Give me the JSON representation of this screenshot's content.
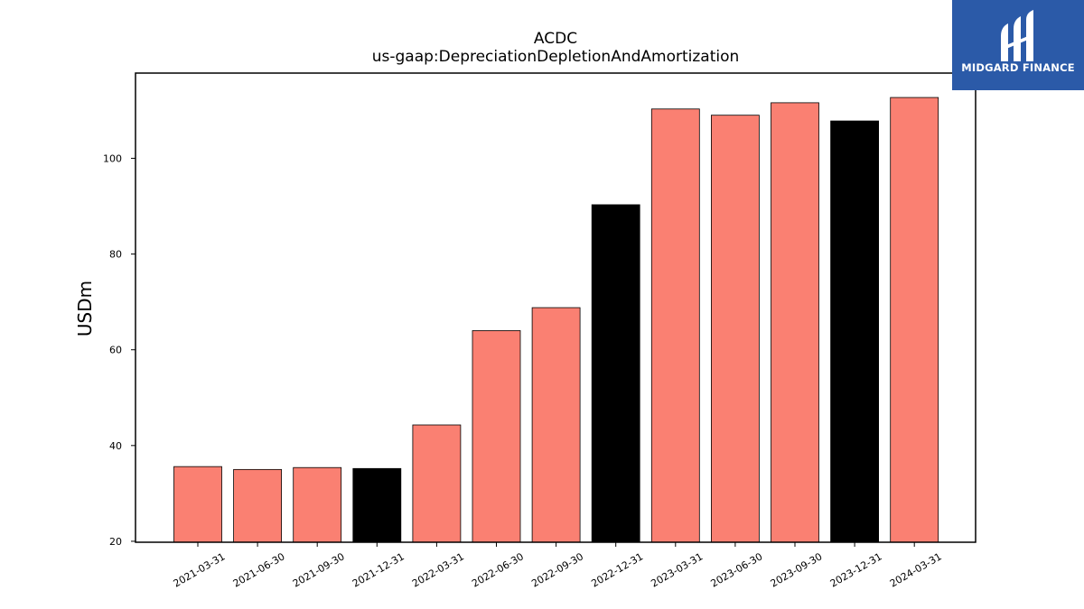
{
  "brand": {
    "name": "MIDGARD FINANCE",
    "icon": "midgard-logo-icon",
    "background": "#2b5aa8"
  },
  "chart_data": {
    "type": "bar",
    "title": "ACDC",
    "subtitle": "us-gaap:DepreciationDepletionAndAmortization",
    "xlabel": "",
    "ylabel": "USDm",
    "ylim": [
      19.8,
      117.8
    ],
    "yticks": [
      20,
      40,
      60,
      80,
      100
    ],
    "grid": false,
    "categories": [
      "2021-03-31",
      "2021-06-30",
      "2021-09-30",
      "2021-12-31",
      "2022-03-31",
      "2022-06-30",
      "2022-09-30",
      "2022-12-31",
      "2023-03-31",
      "2023-06-30",
      "2023-09-30",
      "2023-12-31",
      "2024-03-31"
    ],
    "values": [
      35.6,
      35.0,
      35.4,
      35.2,
      44.3,
      64.0,
      68.8,
      90.3,
      110.3,
      109.0,
      111.6,
      107.8,
      112.7
    ],
    "period_type": [
      "quarter",
      "quarter",
      "quarter",
      "fiscal-year-end",
      "quarter",
      "quarter",
      "quarter",
      "fiscal-year-end",
      "quarter",
      "quarter",
      "quarter",
      "fiscal-year-end",
      "quarter"
    ],
    "colors": {
      "quarter": "#fa8072",
      "fiscal-year-end": "#000000",
      "edge": "#000000"
    }
  }
}
